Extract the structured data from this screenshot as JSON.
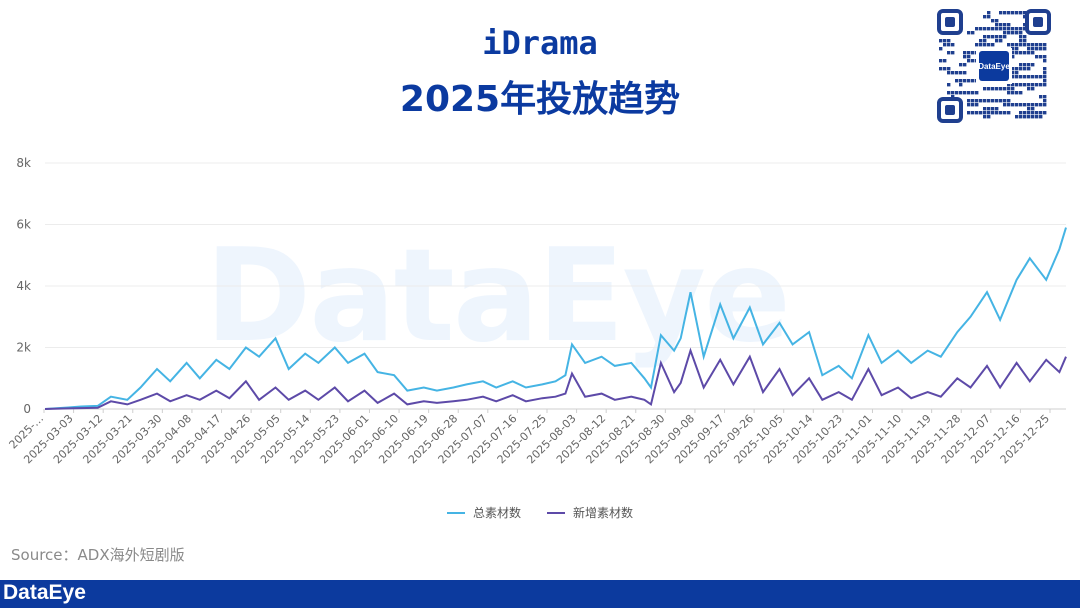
{
  "header": {
    "title_line1": "iDrama",
    "title_line2": "2025年投放趋势"
  },
  "watermark": "DataEye",
  "qr_logo_text": "DataEye",
  "source_text": "Source：ADX海外短剧版",
  "footer_logo": "DataEye",
  "colors": {
    "total": "#45b4e4",
    "new": "#5d4aa8",
    "title": "#0b3aa0",
    "footer": "#0c3a9e"
  },
  "chart_data": {
    "type": "line",
    "ylim": [
      0,
      8000
    ],
    "yticks": [
      0,
      2000,
      4000,
      6000,
      8000
    ],
    "ytick_labels": [
      "0",
      "2k",
      "4k",
      "6k",
      "8k"
    ],
    "xtick_labels": [
      "2025-…",
      "2025-03-03",
      "2025-03-12",
      "2025-03-21",
      "2025-03-30",
      "2025-04-08",
      "2025-04-17",
      "2025-04-26",
      "2025-05-05",
      "2025-05-14",
      "2025-05-23",
      "2025-06-01",
      "2025-06-10",
      "2025-06-19",
      "2025-06-28",
      "2025-07-07",
      "2025-07-16",
      "2025-07-25",
      "2025-08-03",
      "2025-08-12",
      "2025-08-21",
      "2025-08-30",
      "2025-09-08",
      "2025-09-17",
      "2025-09-26",
      "2025-10-05",
      "2025-10-14",
      "2025-10-23",
      "2025-11-01",
      "2025-11-10",
      "2025-11-19",
      "2025-11-28",
      "2025-12-07",
      "2025-12-16",
      "2025-12-25"
    ],
    "x": [
      "2025-02-24",
      "2025-03-03",
      "2025-03-07",
      "2025-03-12",
      "2025-03-16",
      "2025-03-21",
      "2025-03-25",
      "2025-03-30",
      "2025-04-03",
      "2025-04-08",
      "2025-04-12",
      "2025-04-17",
      "2025-04-21",
      "2025-04-26",
      "2025-04-30",
      "2025-05-05",
      "2025-05-09",
      "2025-05-14",
      "2025-05-18",
      "2025-05-23",
      "2025-05-27",
      "2025-06-01",
      "2025-06-05",
      "2025-06-10",
      "2025-06-14",
      "2025-06-19",
      "2025-06-23",
      "2025-06-28",
      "2025-07-02",
      "2025-07-07",
      "2025-07-11",
      "2025-07-16",
      "2025-07-20",
      "2025-07-25",
      "2025-07-29",
      "2025-08-01",
      "2025-08-03",
      "2025-08-07",
      "2025-08-12",
      "2025-08-16",
      "2025-08-21",
      "2025-08-25",
      "2025-08-27",
      "2025-08-30",
      "2025-09-03",
      "2025-09-05",
      "2025-09-08",
      "2025-09-12",
      "2025-09-17",
      "2025-09-21",
      "2025-09-26",
      "2025-09-30",
      "2025-10-05",
      "2025-10-09",
      "2025-10-14",
      "2025-10-18",
      "2025-10-23",
      "2025-10-27",
      "2025-11-01",
      "2025-11-05",
      "2025-11-10",
      "2025-11-14",
      "2025-11-19",
      "2025-11-23",
      "2025-11-28",
      "2025-12-02",
      "2025-12-07",
      "2025-12-11",
      "2025-12-16",
      "2025-12-20",
      "2025-12-25",
      "2025-12-29",
      "2025-12-31"
    ],
    "series": [
      {
        "name": "总素材数",
        "values": [
          0,
          50,
          80,
          100,
          400,
          300,
          700,
          1300,
          900,
          1500,
          1000,
          1600,
          1300,
          2000,
          1700,
          2300,
          1300,
          1800,
          1500,
          2000,
          1500,
          1800,
          1200,
          1100,
          600,
          700,
          600,
          700,
          800,
          900,
          700,
          900,
          700,
          800,
          900,
          1100,
          2100,
          1500,
          1700,
          1400,
          1500,
          1000,
          700,
          2400,
          1900,
          2300,
          3800,
          1700,
          3400,
          2300,
          3300,
          2100,
          2800,
          2100,
          2500,
          1100,
          1400,
          1000,
          2400,
          1500,
          1900,
          1500,
          1900,
          1700,
          2500,
          3000,
          3800,
          2900,
          4200,
          4900,
          4200,
          5200,
          5900
        ]
      },
      {
        "name": "新增素材数",
        "values": [
          0,
          20,
          30,
          40,
          250,
          150,
          300,
          500,
          250,
          450,
          300,
          600,
          350,
          900,
          300,
          700,
          300,
          600,
          300,
          700,
          250,
          600,
          200,
          500,
          150,
          250,
          200,
          250,
          300,
          400,
          250,
          450,
          250,
          350,
          400,
          500,
          1150,
          400,
          500,
          300,
          400,
          300,
          150,
          1500,
          550,
          850,
          1900,
          700,
          1600,
          800,
          1700,
          550,
          1300,
          450,
          1000,
          300,
          550,
          300,
          1300,
          450,
          700,
          350,
          550,
          400,
          1000,
          700,
          1400,
          700,
          1500,
          900,
          1600,
          1200,
          1700
        ]
      }
    ],
    "legend_position": "bottom-center",
    "grid": true
  }
}
